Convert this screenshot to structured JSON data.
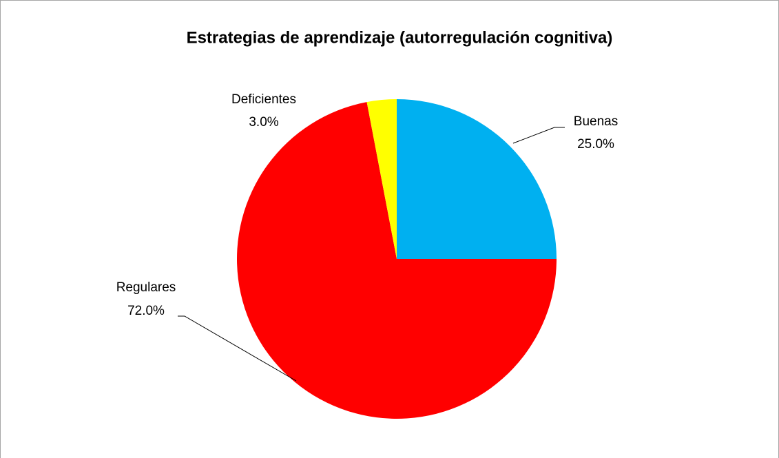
{
  "chart_data": {
    "type": "pie",
    "title": "Estrategias de aprendizaje (autorregulación cognitiva)",
    "categories": [
      "Buenas",
      "Regulares",
      "Deficientes"
    ],
    "values": [
      25,
      72,
      3
    ],
    "value_labels": [
      "25.0%",
      "72.0%",
      "3.0%"
    ],
    "colors": [
      "#00b0f0",
      "#ff0000",
      "#ffff00"
    ]
  }
}
